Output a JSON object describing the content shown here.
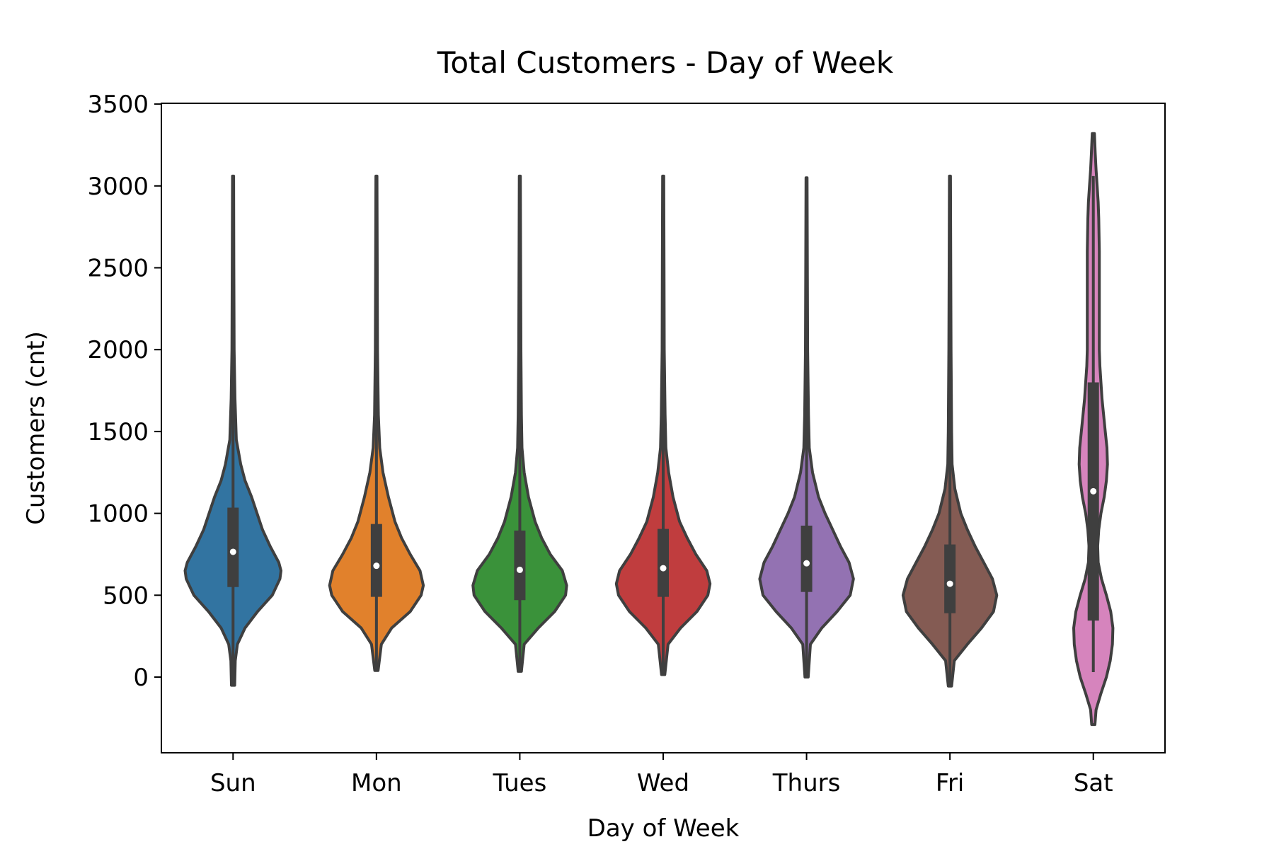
{
  "chart_data": {
    "type": "violin",
    "title": "Total Customers - Day of Week",
    "xlabel": "Day of Week",
    "ylabel": "Customers (cnt)",
    "ylim": [
      -470,
      3500
    ],
    "yticks": [
      0,
      500,
      1000,
      1500,
      2000,
      2500,
      3000,
      3500
    ],
    "grid": false,
    "categories": [
      "Sun",
      "Mon",
      "Tues",
      "Wed",
      "Thurs",
      "Fri",
      "Sat"
    ],
    "series": [
      {
        "category": "Sun",
        "color": "#3274a1",
        "min": -50,
        "q1": 550,
        "median": 765,
        "q3": 1035,
        "max": 3060,
        "density": [
          [
            -50,
            0.03
          ],
          [
            100,
            0.04
          ],
          [
            200,
            0.08
          ],
          [
            300,
            0.22
          ],
          [
            400,
            0.45
          ],
          [
            500,
            0.72
          ],
          [
            600,
            0.86
          ],
          [
            650,
            0.88
          ],
          [
            700,
            0.84
          ],
          [
            800,
            0.68
          ],
          [
            900,
            0.54
          ],
          [
            1000,
            0.44
          ],
          [
            1100,
            0.34
          ],
          [
            1200,
            0.22
          ],
          [
            1300,
            0.14
          ],
          [
            1450,
            0.06
          ],
          [
            1700,
            0.035
          ],
          [
            2000,
            0.02
          ],
          [
            2500,
            0.015
          ],
          [
            3060,
            0.01
          ]
        ]
      },
      {
        "category": "Mon",
        "color": "#e1812c",
        "min": 40,
        "q1": 490,
        "median": 680,
        "q3": 935,
        "max": 3060,
        "density": [
          [
            40,
            0.03
          ],
          [
            200,
            0.09
          ],
          [
            300,
            0.28
          ],
          [
            400,
            0.62
          ],
          [
            500,
            0.82
          ],
          [
            560,
            0.86
          ],
          [
            650,
            0.8
          ],
          [
            750,
            0.62
          ],
          [
            850,
            0.46
          ],
          [
            950,
            0.34
          ],
          [
            1100,
            0.22
          ],
          [
            1250,
            0.12
          ],
          [
            1400,
            0.06
          ],
          [
            1600,
            0.035
          ],
          [
            2000,
            0.02
          ],
          [
            2500,
            0.015
          ],
          [
            3060,
            0.01
          ]
        ]
      },
      {
        "category": "Tues",
        "color": "#3a923a",
        "min": 35,
        "q1": 470,
        "median": 655,
        "q3": 895,
        "max": 3060,
        "density": [
          [
            35,
            0.03
          ],
          [
            200,
            0.08
          ],
          [
            300,
            0.34
          ],
          [
            400,
            0.64
          ],
          [
            500,
            0.84
          ],
          [
            560,
            0.86
          ],
          [
            650,
            0.78
          ],
          [
            750,
            0.56
          ],
          [
            850,
            0.4
          ],
          [
            950,
            0.28
          ],
          [
            1100,
            0.16
          ],
          [
            1250,
            0.08
          ],
          [
            1400,
            0.04
          ],
          [
            1600,
            0.03
          ],
          [
            2000,
            0.02
          ],
          [
            2500,
            0.015
          ],
          [
            3060,
            0.01
          ]
        ]
      },
      {
        "category": "Wed",
        "color": "#c03d3e",
        "min": 15,
        "q1": 490,
        "median": 665,
        "q3": 905,
        "max": 3060,
        "density": [
          [
            15,
            0.03
          ],
          [
            200,
            0.09
          ],
          [
            300,
            0.32
          ],
          [
            400,
            0.62
          ],
          [
            500,
            0.82
          ],
          [
            570,
            0.86
          ],
          [
            650,
            0.8
          ],
          [
            750,
            0.6
          ],
          [
            850,
            0.44
          ],
          [
            950,
            0.3
          ],
          [
            1100,
            0.18
          ],
          [
            1250,
            0.1
          ],
          [
            1400,
            0.05
          ],
          [
            1600,
            0.035
          ],
          [
            2000,
            0.02
          ],
          [
            2500,
            0.015
          ],
          [
            3060,
            0.01
          ]
        ]
      },
      {
        "category": "Thurs",
        "color": "#9372b2",
        "min": 0,
        "q1": 520,
        "median": 695,
        "q3": 925,
        "max": 3050,
        "density": [
          [
            0,
            0.03
          ],
          [
            200,
            0.07
          ],
          [
            300,
            0.28
          ],
          [
            400,
            0.56
          ],
          [
            500,
            0.8
          ],
          [
            600,
            0.86
          ],
          [
            700,
            0.78
          ],
          [
            800,
            0.62
          ],
          [
            900,
            0.48
          ],
          [
            1000,
            0.34
          ],
          [
            1100,
            0.22
          ],
          [
            1250,
            0.11
          ],
          [
            1400,
            0.05
          ],
          [
            1600,
            0.035
          ],
          [
            2000,
            0.02
          ],
          [
            2500,
            0.015
          ],
          [
            3050,
            0.01
          ]
        ]
      },
      {
        "category": "Fri",
        "color": "#845b53",
        "min": -55,
        "q1": 390,
        "median": 570,
        "q3": 810,
        "max": 3060,
        "density": [
          [
            -55,
            0.03
          ],
          [
            100,
            0.08
          ],
          [
            200,
            0.32
          ],
          [
            300,
            0.58
          ],
          [
            400,
            0.8
          ],
          [
            500,
            0.86
          ],
          [
            600,
            0.78
          ],
          [
            700,
            0.62
          ],
          [
            800,
            0.46
          ],
          [
            900,
            0.32
          ],
          [
            1000,
            0.2
          ],
          [
            1150,
            0.09
          ],
          [
            1300,
            0.04
          ],
          [
            1500,
            0.03
          ],
          [
            2000,
            0.02
          ],
          [
            2500,
            0.015
          ],
          [
            3060,
            0.01
          ]
        ]
      },
      {
        "category": "Sat",
        "color": "#d684bd",
        "min": 30,
        "q1": 345,
        "median": 1135,
        "q3": 1800,
        "max": 3060,
        "density": [
          [
            -290,
            0.03
          ],
          [
            -200,
            0.05
          ],
          [
            -100,
            0.14
          ],
          [
            0,
            0.24
          ],
          [
            100,
            0.31
          ],
          [
            200,
            0.35
          ],
          [
            300,
            0.36
          ],
          [
            400,
            0.32
          ],
          [
            500,
            0.24
          ],
          [
            600,
            0.15
          ],
          [
            700,
            0.09
          ],
          [
            800,
            0.08
          ],
          [
            900,
            0.1
          ],
          [
            1000,
            0.14
          ],
          [
            1100,
            0.2
          ],
          [
            1200,
            0.24
          ],
          [
            1300,
            0.26
          ],
          [
            1400,
            0.25
          ],
          [
            1500,
            0.22
          ],
          [
            1600,
            0.19
          ],
          [
            1700,
            0.16
          ],
          [
            1800,
            0.14
          ],
          [
            1900,
            0.12
          ],
          [
            2000,
            0.11
          ],
          [
            2200,
            0.11
          ],
          [
            2400,
            0.11
          ],
          [
            2600,
            0.11
          ],
          [
            2800,
            0.1
          ],
          [
            2900,
            0.09
          ],
          [
            3000,
            0.07
          ],
          [
            3100,
            0.05
          ],
          [
            3200,
            0.035
          ],
          [
            3320,
            0.02
          ]
        ]
      }
    ]
  }
}
